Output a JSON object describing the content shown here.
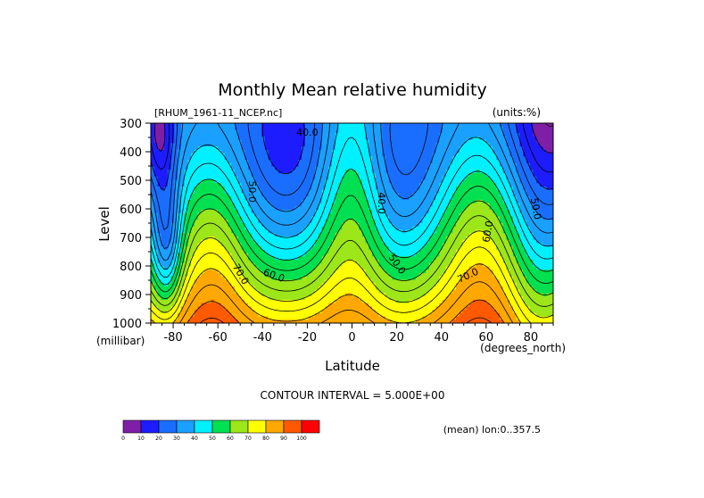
{
  "chart_data": {
    "type": "heatmap",
    "title": "Monthly Mean relative humidity",
    "file_label": "[RHUM_1961-11_NCEP.nc]",
    "units_label": "(units:%)",
    "xlabel": "Latitude",
    "x_units": "(degrees_north)",
    "ylabel": "Level",
    "y_units": "(millibar)",
    "xlim": [
      -90,
      90
    ],
    "ylim": [
      1000,
      300
    ],
    "x_ticks": [
      -80,
      -60,
      -40,
      -20,
      0,
      20,
      40,
      60,
      80
    ],
    "x_tick_labels": [
      "-80",
      "-60",
      "-40",
      "-20",
      "0",
      "20",
      "40",
      "60",
      "80"
    ],
    "y_ticks": [
      300,
      400,
      500,
      600,
      700,
      800,
      900,
      1000
    ],
    "y_tick_labels": [
      "300",
      "400",
      "500",
      "600",
      "700",
      "800",
      "900",
      "1000"
    ],
    "contour_interval_text": "CONTOUR INTERVAL = 5.000E+00",
    "subtitle": "(mean) lon:0..357.5",
    "contour_labels": [
      {
        "text": "40.0",
        "lat": -20,
        "lev": 335
      },
      {
        "text": "50.0",
        "lat": -45,
        "lev": 540,
        "rotate": 90
      },
      {
        "text": "40.0",
        "lat": 13,
        "lev": 580,
        "rotate": 90
      },
      {
        "text": "50.0",
        "lat": 82,
        "lev": 600,
        "rotate": 80
      },
      {
        "text": "60.0",
        "lat": 61,
        "lev": 680,
        "rotate": -80
      },
      {
        "text": "70.0",
        "lat": -50,
        "lev": 830,
        "rotate": 60
      },
      {
        "text": "60.0",
        "lat": -35,
        "lev": 835,
        "rotate": 20
      },
      {
        "text": "50.0",
        "lat": 20,
        "lev": 795,
        "rotate": 55
      },
      {
        "text": "70.0",
        "lat": 52,
        "lev": 835,
        "rotate": -25
      }
    ],
    "legend": {
      "levels": [
        "0",
        "10",
        "20",
        "30",
        "40",
        "50",
        "60",
        "70",
        "80",
        "90",
        "100"
      ],
      "colors": [
        "#7f1fa6",
        "#1c1cff",
        "#1a6eff",
        "#1aa0ff",
        "#00f0ff",
        "#00e050",
        "#9ce61a",
        "#ffff00",
        "#ffa800",
        "#ff5a00",
        "#ff0000"
      ]
    }
  }
}
